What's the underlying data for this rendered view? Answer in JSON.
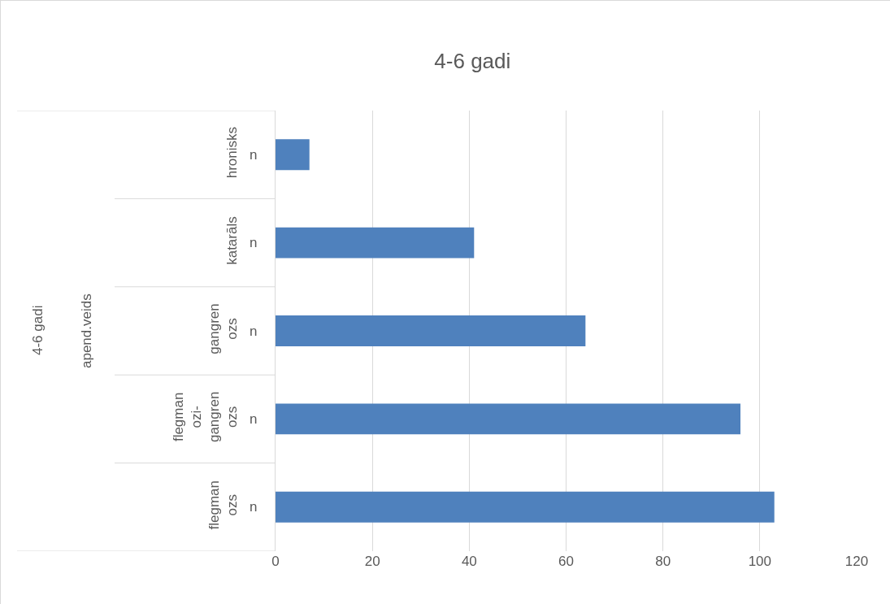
{
  "chart_data": {
    "type": "bar",
    "orientation": "horizontal",
    "title": "4-6 gadi",
    "categories": [
      "hronisks",
      "katarāls",
      "gangrenozs",
      "flegmanozi-gangrenozs",
      "flegmanozs"
    ],
    "values": [
      7,
      41,
      64,
      96,
      103
    ],
    "color": "#4f81bd",
    "xlim": [
      0,
      120
    ],
    "xticks": [
      0,
      20,
      40,
      60,
      80,
      100,
      120
    ],
    "grid": "x",
    "legend": false,
    "annotations": [
      "n",
      "n",
      "n",
      "n",
      "n",
      "apend.veids",
      "4-6 gadi"
    ]
  }
}
